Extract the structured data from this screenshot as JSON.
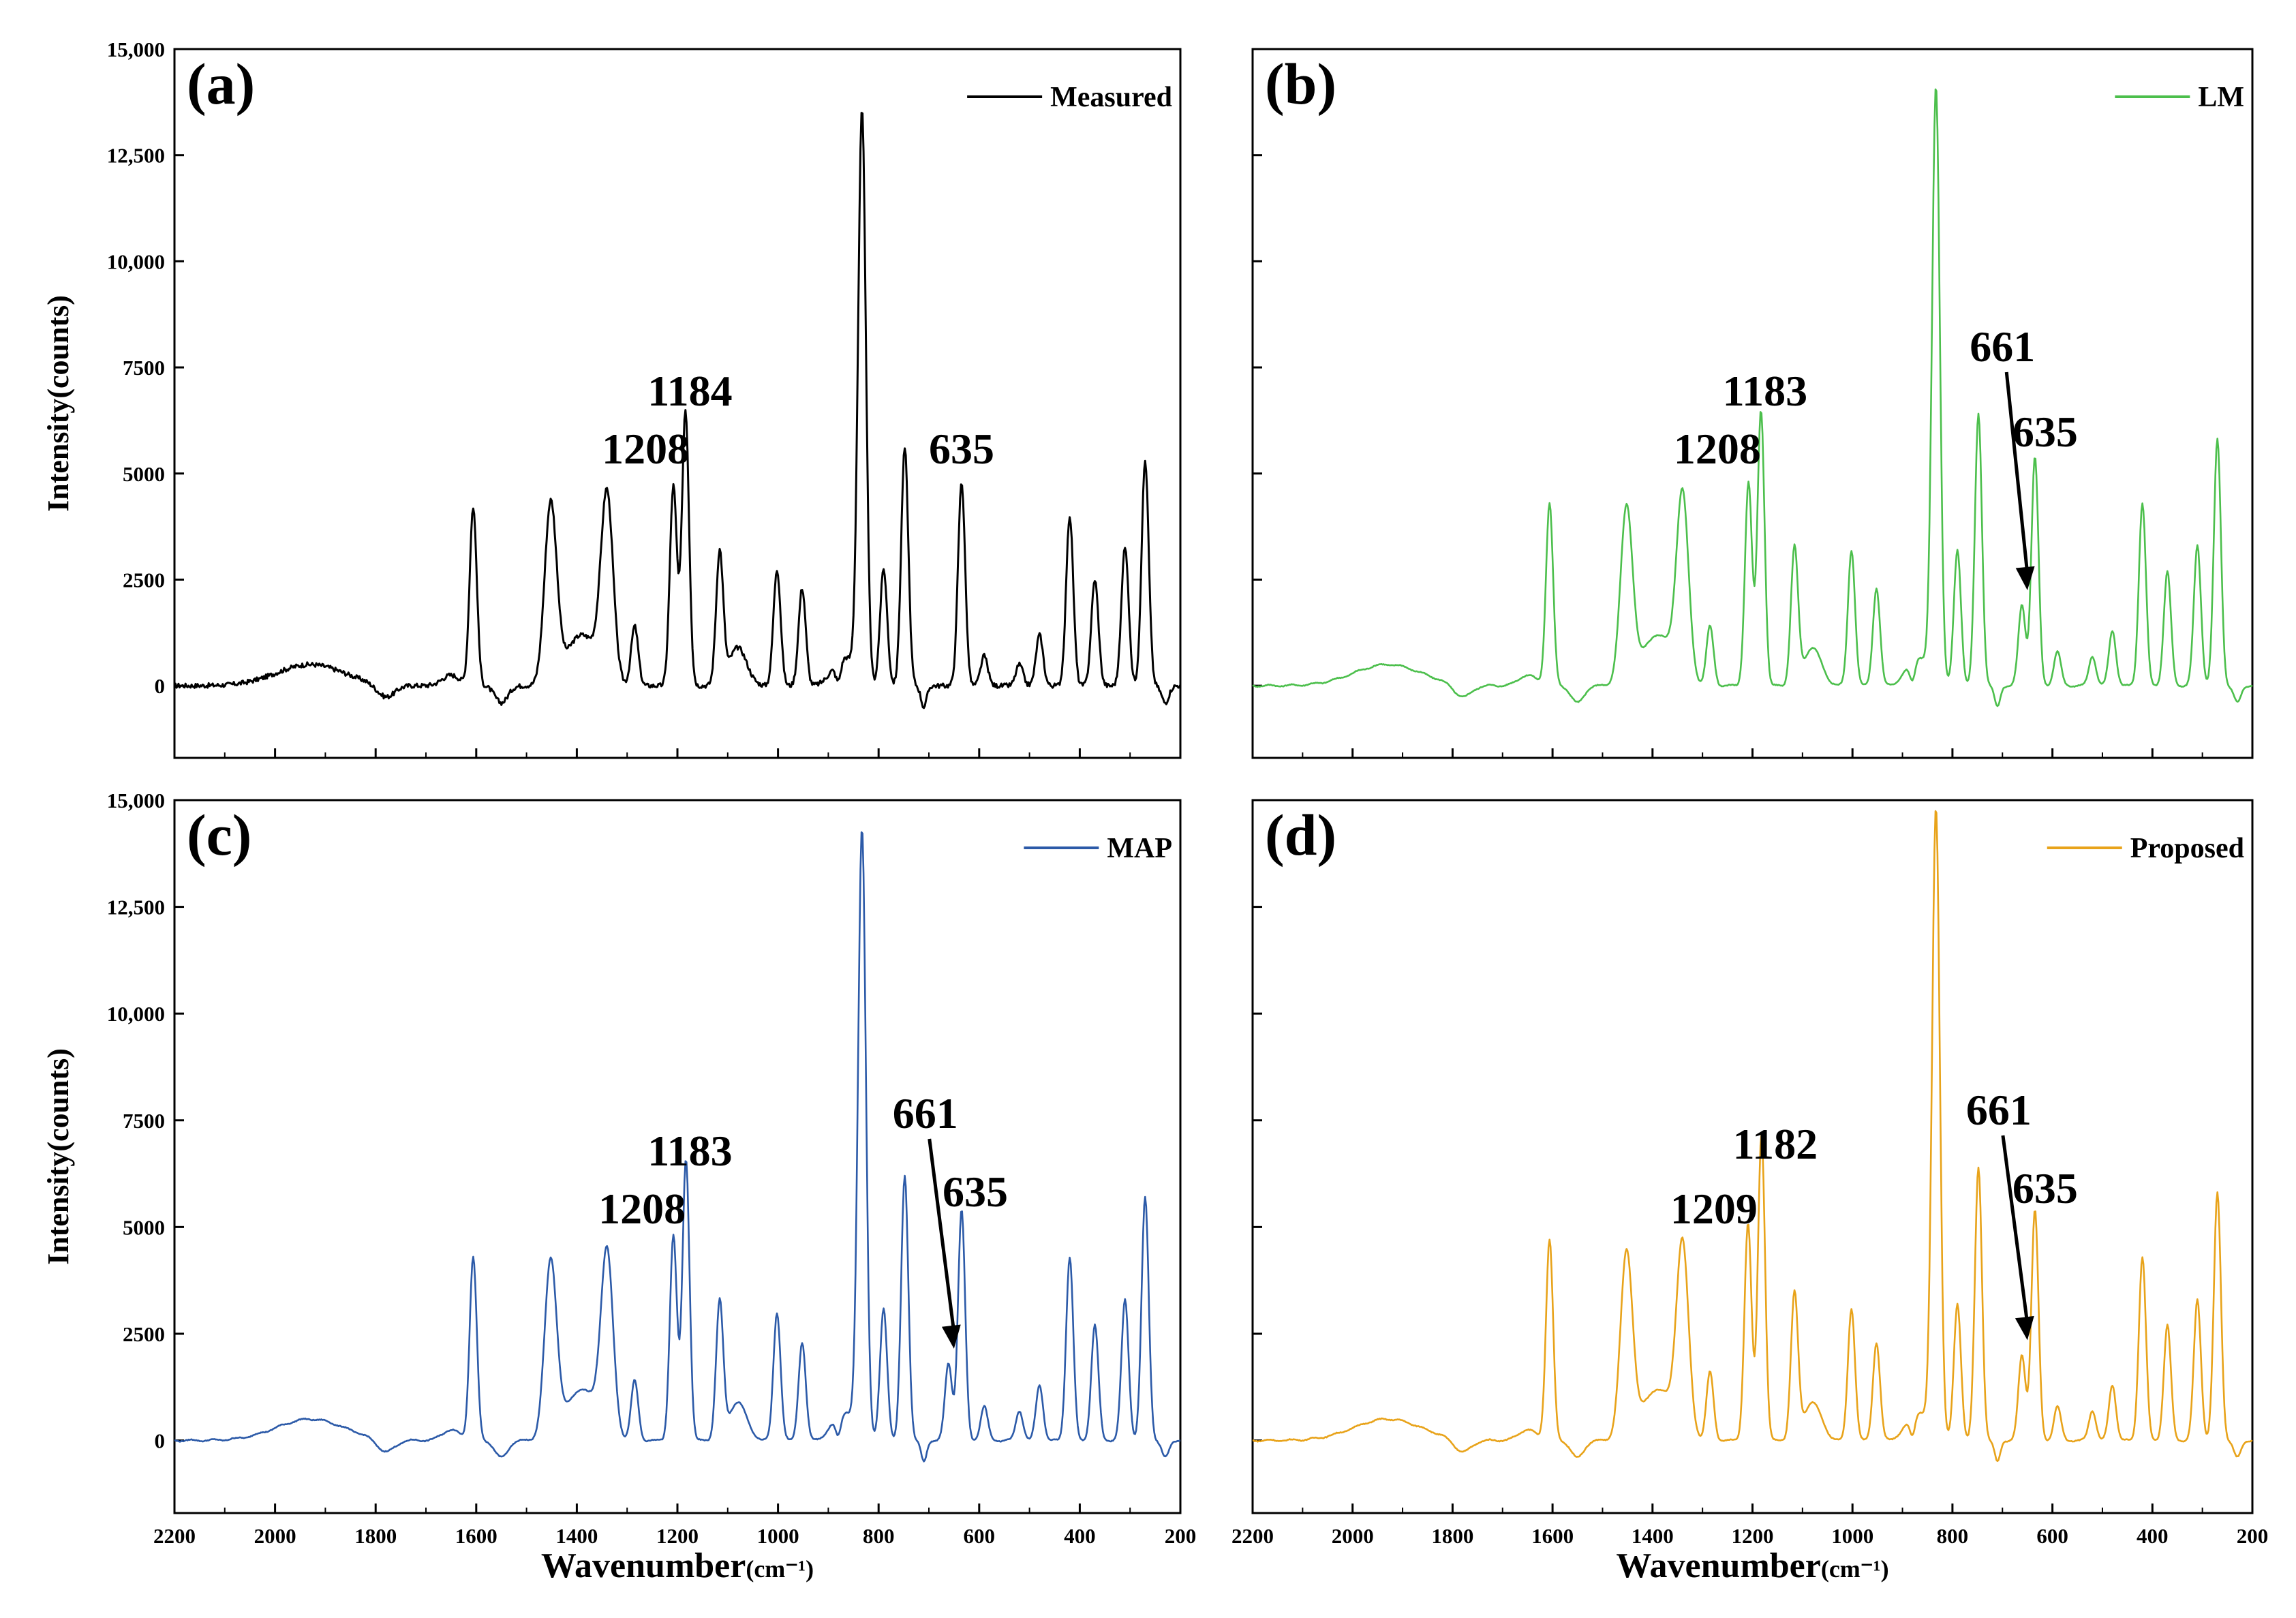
{
  "chart_data": [
    {
      "panel": "(a)",
      "type": "line",
      "legend": "Measured",
      "color": "#000000",
      "peaks": [
        [
          1606,
          4200
        ],
        [
          1452,
          4200
        ],
        [
          1340,
          4300
        ],
        [
          1285,
          1400
        ],
        [
          1208,
          4700
        ],
        [
          1184,
          6500
        ],
        [
          1116,
          3100
        ],
        [
          1002,
          2750
        ],
        [
          952,
          2300
        ],
        [
          833,
          13400
        ],
        [
          790,
          2750
        ],
        [
          748,
          5600
        ],
        [
          635,
          4800
        ],
        [
          590,
          700
        ],
        [
          520,
          500
        ],
        [
          480,
          1200
        ],
        [
          420,
          4000
        ],
        [
          370,
          2500
        ],
        [
          310,
          3300
        ],
        [
          270,
          5300
        ]
      ],
      "annotations": [
        {
          "text": "1208"
        },
        {
          "text": "1184"
        },
        {
          "text": "635"
        }
      ]
    },
    {
      "panel": "(b)",
      "type": "line",
      "legend": "LM",
      "color": "#4cbf4c",
      "peaks": [
        [
          1606,
          4300
        ],
        [
          1452,
          4100
        ],
        [
          1340,
          4300
        ],
        [
          1285,
          1400
        ],
        [
          1208,
          4800
        ],
        [
          1183,
          6500
        ],
        [
          1116,
          3200
        ],
        [
          1002,
          3200
        ],
        [
          952,
          2300
        ],
        [
          833,
          14000
        ],
        [
          790,
          3200
        ],
        [
          748,
          6400
        ],
        [
          661,
          1900
        ],
        [
          635,
          5400
        ],
        [
          590,
          800
        ],
        [
          520,
          700
        ],
        [
          480,
          1300
        ],
        [
          420,
          4300
        ],
        [
          370,
          2700
        ],
        [
          310,
          3300
        ],
        [
          270,
          5800
        ]
      ],
      "annotations": [
        {
          "text": "1208"
        },
        {
          "text": "1183"
        },
        {
          "text": "661"
        },
        {
          "text": "635"
        }
      ]
    },
    {
      "panel": "(c)",
      "type": "line",
      "legend": "MAP",
      "color": "#2c5aa8",
      "peaks": [
        [
          1606,
          4300
        ],
        [
          1452,
          4100
        ],
        [
          1340,
          4200
        ],
        [
          1285,
          1400
        ],
        [
          1208,
          4800
        ],
        [
          1183,
          6600
        ],
        [
          1116,
          3200
        ],
        [
          1002,
          3000
        ],
        [
          952,
          2300
        ],
        [
          833,
          14200
        ],
        [
          790,
          3100
        ],
        [
          748,
          6200
        ],
        [
          661,
          1800
        ],
        [
          635,
          5400
        ],
        [
          590,
          800
        ],
        [
          520,
          700
        ],
        [
          480,
          1300
        ],
        [
          420,
          4300
        ],
        [
          370,
          2700
        ],
        [
          310,
          3300
        ],
        [
          270,
          5700
        ]
      ],
      "annotations": [
        {
          "text": "1208"
        },
        {
          "text": "1183"
        },
        {
          "text": "661"
        },
        {
          "text": "635"
        }
      ]
    },
    {
      "panel": "(d)",
      "type": "line",
      "legend": "Proposed",
      "color": "#e8a31a",
      "peaks": [
        [
          1606,
          4700
        ],
        [
          1452,
          4300
        ],
        [
          1340,
          4400
        ],
        [
          1285,
          1600
        ],
        [
          1209,
          5100
        ],
        [
          1182,
          7200
        ],
        [
          1116,
          3400
        ],
        [
          1002,
          3100
        ],
        [
          952,
          2300
        ],
        [
          833,
          14700
        ],
        [
          790,
          3200
        ],
        [
          748,
          6400
        ],
        [
          661,
          2000
        ],
        [
          635,
          5400
        ],
        [
          590,
          800
        ],
        [
          520,
          700
        ],
        [
          480,
          1300
        ],
        [
          420,
          4300
        ],
        [
          370,
          2700
        ],
        [
          310,
          3300
        ],
        [
          270,
          5800
        ]
      ],
      "annotations": [
        {
          "text": "1209"
        },
        {
          "text": "1182"
        },
        {
          "text": "661"
        },
        {
          "text": "635"
        }
      ]
    }
  ],
  "axes": {
    "x_title_main": "Wavenumber",
    "x_title_unit": "(cm⁻¹)",
    "y_title": "Intensity(counts)",
    "x_range": [
      2200,
      200
    ],
    "y_range": [
      -1700,
      15000
    ],
    "x_ticks": [
      "2200",
      "2000",
      "1800",
      "1600",
      "1400",
      "1200",
      "1000",
      "800",
      "600",
      "400",
      "200"
    ],
    "y_ticks": [
      "15,000",
      "12,500",
      "10,000",
      "7500",
      "5000",
      "2500",
      "0"
    ]
  }
}
